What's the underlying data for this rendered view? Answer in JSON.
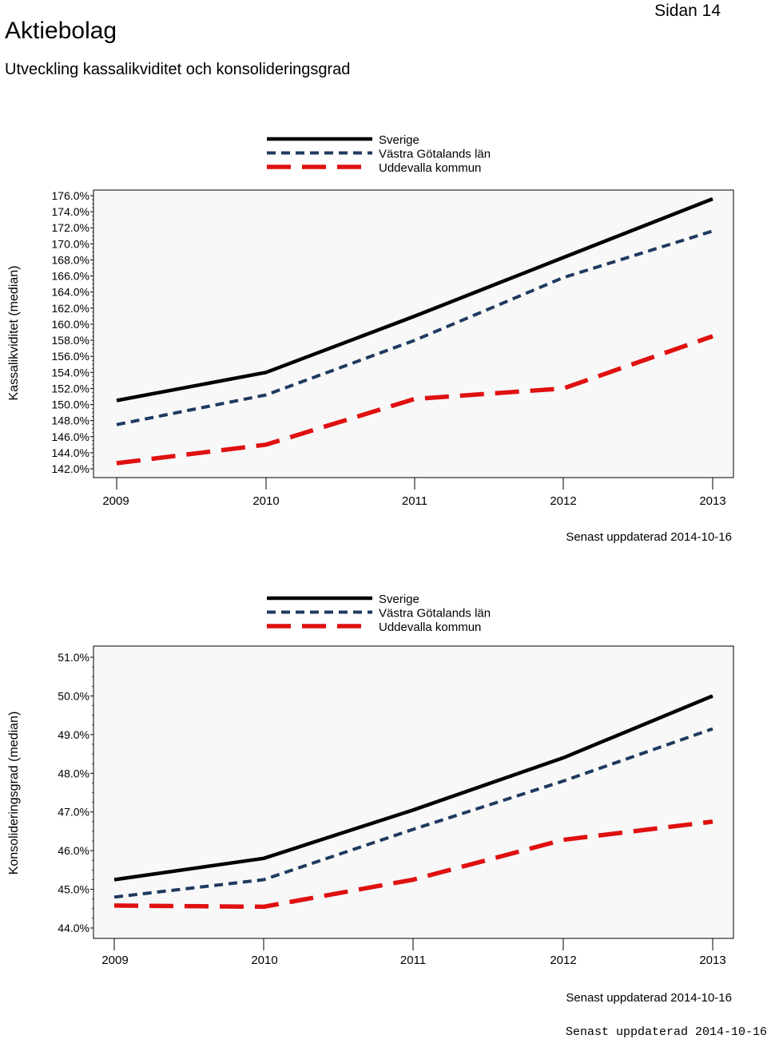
{
  "header": {
    "title": "Aktiebolag",
    "subtitle": "Utveckling kassalikviditet och konsolideringsgrad",
    "page_label": "Sidan 14"
  },
  "footer": {
    "updated": "Senast uppdaterad 2014-10-16"
  },
  "colors": {
    "sverige": "#000000",
    "vgl": "#1f3a5f",
    "uddevalla": "#e01010",
    "plot_bg": "#f8f8f8"
  },
  "chart_data": [
    {
      "type": "line",
      "ylabel": "Kassalikviditet (median)",
      "categories": [
        "2009",
        "2010",
        "2011",
        "2012",
        "2013"
      ],
      "ylim": [
        142,
        176
      ],
      "yticks": [
        "176.0%",
        "174.0%",
        "172.0%",
        "170.0%",
        "168.0%",
        "166.0%",
        "164.0%",
        "162.0%",
        "160.0%",
        "158.0%",
        "156.0%",
        "154.0%",
        "152.0%",
        "150.0%",
        "148.0%",
        "146.0%",
        "144.0%",
        "142.0%"
      ],
      "series": [
        {
          "name": "Sverige",
          "values": [
            150.5,
            154.0,
            161.0,
            168.3,
            175.6
          ]
        },
        {
          "name": "Västra Götalands län",
          "values": [
            147.5,
            151.2,
            158.0,
            165.8,
            171.6
          ]
        },
        {
          "name": "Uddevalla kommun",
          "values": [
            142.7,
            145.0,
            150.7,
            152.0,
            158.5
          ]
        }
      ],
      "note": "Senast uppdaterad 2014-10-16"
    },
    {
      "type": "line",
      "ylabel": "Konsolideringsgrad (median)",
      "categories": [
        "2009",
        "2010",
        "2011",
        "2012",
        "2013"
      ],
      "ylim": [
        44,
        51
      ],
      "yticks": [
        "51.0%",
        "50.0%",
        "49.0%",
        "48.0%",
        "47.0%",
        "46.0%",
        "45.0%",
        "44.0%"
      ],
      "series": [
        {
          "name": "Sverige",
          "values": [
            45.25,
            45.8,
            47.05,
            48.4,
            50.0
          ]
        },
        {
          "name": "Västra Götalands län",
          "values": [
            44.8,
            45.25,
            46.55,
            47.8,
            49.15
          ]
        },
        {
          "name": "Uddevalla kommun",
          "values": [
            44.58,
            44.55,
            45.25,
            46.28,
            46.75
          ]
        }
      ],
      "note": "Senast uppdaterad 2014-10-16"
    }
  ]
}
